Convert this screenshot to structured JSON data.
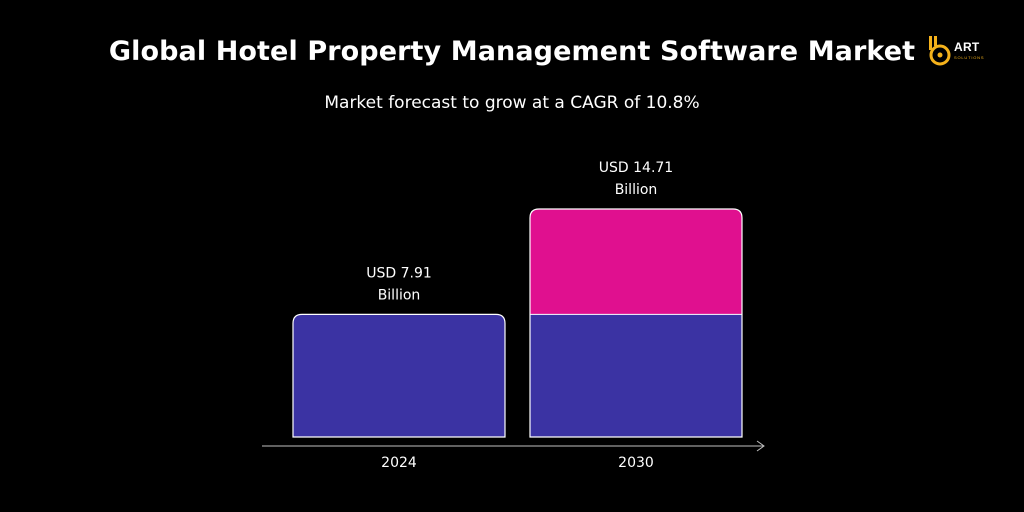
{
  "header": {
    "title": "Global Hotel Property Management Software Market",
    "subtitle": "Market forecast to grow at a CAGR of 10.8%"
  },
  "logo": {
    "name": "ART",
    "tagline": "SOLUTIONS",
    "icon": "art-solutions-logo-icon",
    "accent_color": "#f5b21b"
  },
  "colors": {
    "background": "#000000",
    "base_segment": "#3b33a3",
    "growth_segment": "#e0108f",
    "bar_outline": "#ffffff",
    "axis": "#bfbfbf"
  },
  "chart_data": {
    "type": "bar",
    "title": "Global Hotel Property Management Software Market",
    "subtitle": "Market forecast to grow at a CAGR of 10.8%",
    "categories": [
      "2024",
      "2030"
    ],
    "values": [
      7.91,
      14.71
    ],
    "value_labels": [
      [
        "USD 7.91",
        "Billion"
      ],
      [
        "USD 14.71",
        "Billion"
      ]
    ],
    "unit": "USD Billion",
    "stacked_segments": {
      "base": [
        7.91,
        7.91
      ],
      "growth": [
        0,
        6.8
      ]
    },
    "ylim": [
      0,
      14.71
    ],
    "xlabel": "",
    "ylabel": "",
    "grid": false,
    "legend": "none"
  }
}
